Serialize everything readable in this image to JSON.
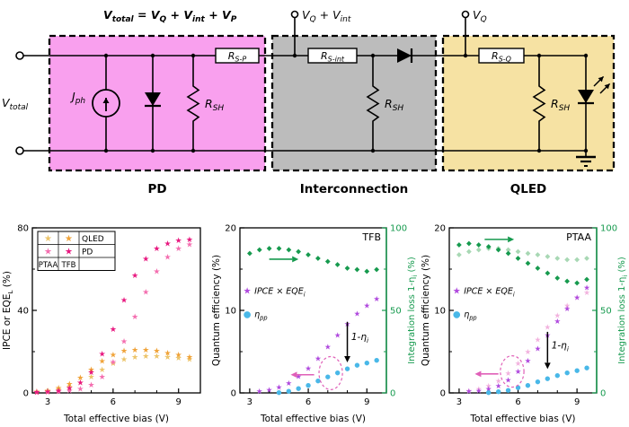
{
  "circuit": {
    "formula": [
      "V",
      "total",
      " = ",
      "V",
      "Q",
      " + ",
      "V",
      "int",
      " + ",
      "V",
      "P"
    ],
    "v_total": [
      "V",
      "total"
    ],
    "v_q_int": [
      "V",
      "Q",
      " + ",
      "V",
      "int"
    ],
    "v_q": [
      "V",
      "Q"
    ],
    "j_ph": [
      "J",
      "ph"
    ],
    "r_sh": [
      "R",
      "SH"
    ],
    "r_sp": [
      "R",
      "S-P"
    ],
    "r_sint": [
      "R",
      "S-int"
    ],
    "r_sq": [
      "R",
      "S-Q"
    ],
    "sections": {
      "pd": "PD",
      "interconnection": "Interconnection",
      "qled": "QLED"
    },
    "colors": {
      "pd_box": "#f9a0ee",
      "interconnection_box": "#bcbcbc",
      "qled_box": "#f6e2a3"
    }
  },
  "chart_data": [
    {
      "type": "scatter",
      "panel": "left",
      "title": "",
      "xlabel": "Total effective bias (V)",
      "ylabel_parts": [
        [
          "IPCE or EQE",
          false
        ],
        [
          "L",
          true
        ],
        [
          " (%)",
          false
        ]
      ],
      "xlim": [
        2.3,
        10
      ],
      "ylim": [
        0,
        80
      ],
      "xticks": [
        3,
        6,
        9
      ],
      "xminor": [
        4,
        5,
        7,
        8
      ],
      "yticks": [
        0,
        40,
        80
      ],
      "yminor": [
        20,
        60
      ],
      "ml": 36,
      "mr": 10,
      "legend_table": {
        "cols": [
          "PTAA",
          "TFB"
        ],
        "rows": [
          {
            "label": "QLED",
            "colors": [
              "#ecc46a",
              "#f0a339"
            ]
          },
          {
            "label": "PD",
            "colors": [
              "#f46fb0",
              "#e81980"
            ]
          }
        ]
      },
      "series": [
        {
          "name": "QLED PTAA",
          "color": "#ecc46a",
          "glyph": "★",
          "size": 9,
          "axis": "y",
          "x": [
            2.5,
            3,
            3.5,
            4,
            4.5,
            5,
            5.5,
            6,
            6.5,
            7,
            7.5,
            8,
            8.5,
            9,
            9.5
          ],
          "y": [
            0.5,
            1,
            1.8,
            3,
            5,
            8,
            11.5,
            14.5,
            16.5,
            17.5,
            18,
            18,
            17.5,
            17,
            16.5
          ]
        },
        {
          "name": "QLED TFB",
          "color": "#f0a339",
          "glyph": "★",
          "size": 9,
          "axis": "y",
          "x": [
            2.5,
            3,
            3.5,
            4,
            4.5,
            5,
            5.5,
            6,
            6.5,
            7,
            7.5,
            8,
            8.5,
            9,
            9.5
          ],
          "y": [
            0.7,
            1.3,
            2.5,
            4.5,
            7.5,
            11.5,
            15.5,
            18.5,
            20.5,
            21,
            21,
            20.5,
            19.5,
            18.5,
            17.5
          ]
        },
        {
          "name": "PD PTAA",
          "color": "#f46fb0",
          "glyph": "★",
          "size": 9,
          "axis": "y",
          "x": [
            2.5,
            3,
            3.5,
            4,
            4.5,
            5,
            5.5,
            6,
            6.5,
            7,
            7.5,
            8,
            8.5,
            9,
            9.5
          ],
          "y": [
            0.3,
            0.5,
            0.8,
            1.2,
            2,
            4,
            8,
            15,
            25,
            37,
            49,
            59,
            66,
            70,
            72
          ]
        },
        {
          "name": "PD TFB",
          "color": "#e81980",
          "glyph": "★",
          "size": 9,
          "axis": "y",
          "x": [
            2.5,
            3,
            3.5,
            4,
            4.5,
            5,
            5.5,
            6,
            6.5,
            7,
            7.5,
            8,
            8.5,
            9,
            9.5
          ],
          "y": [
            0.5,
            0.8,
            1.2,
            2.5,
            5,
            10,
            19,
            31,
            45,
            57,
            65,
            70,
            72.5,
            74,
            74.5
          ]
        }
      ]
    },
    {
      "type": "scatter",
      "panel": "middle",
      "title": "TFB",
      "xlabel": "Total effective bias (V)",
      "ylabel_parts": [
        [
          "Quantum efficiency (%)",
          false
        ]
      ],
      "xlim": [
        2.5,
        10
      ],
      "ylim": [
        0,
        20
      ],
      "xticks": [
        3,
        6,
        9
      ],
      "xminor": [
        4,
        5,
        7,
        8
      ],
      "yticks": [
        0,
        10,
        20
      ],
      "yminor": [
        5,
        15
      ],
      "ml": 34,
      "mr": 36,
      "y2": {
        "lim": [
          0,
          100
        ],
        "ticks": [
          0,
          50,
          100
        ],
        "minor": [
          25,
          75
        ],
        "color": "#169a4e",
        "label_parts": [
          [
            "Integration loss 1-η",
            false
          ],
          [
            "i",
            true
          ],
          [
            " (%)",
            false
          ]
        ]
      },
      "legend_items": [
        {
          "glyph": "★",
          "color": "#b04ade",
          "fx": 0.05,
          "fy": 0.4,
          "parts": [
            [
              "IPCE × EQE",
              false
            ],
            [
              "i",
              true
            ]
          ]
        },
        {
          "glyph": "●",
          "color": "#49b8e8",
          "fx": 0.05,
          "fy": 0.54,
          "parts": [
            [
              "η",
              false
            ],
            [
              "pp",
              true
            ]
          ]
        }
      ],
      "series": [
        {
          "name": "Integration loss",
          "color": "#169a4e",
          "glyph": "◆",
          "size": 7.5,
          "axis": "y2",
          "x": [
            3,
            3.5,
            4,
            4.5,
            5,
            5.5,
            6,
            6.5,
            7,
            7.5,
            8,
            8.5,
            9,
            9.5
          ],
          "y": [
            85,
            87,
            88,
            88,
            87,
            86,
            84,
            82,
            80,
            78,
            76,
            75,
            74,
            75
          ]
        },
        {
          "name": "IPCE × EQEi",
          "color": "#b04ade",
          "glyph": "★",
          "size": 8.5,
          "axis": "y",
          "x": [
            3.5,
            4,
            4.5,
            5,
            5.5,
            6,
            6.5,
            7,
            7.5,
            8,
            8.5,
            9,
            9.5
          ],
          "y": [
            0.2,
            0.4,
            0.7,
            1.2,
            2,
            3,
            4.2,
            5.6,
            7,
            8.4,
            9.6,
            10.6,
            11.4
          ]
        },
        {
          "name": "ηpp",
          "color": "#49b8e8",
          "glyph": "●",
          "size": 7,
          "axis": "y",
          "x": [
            4.5,
            5,
            5.5,
            6,
            6.5,
            7,
            7.5,
            8,
            8.5,
            9,
            9.5
          ],
          "y": [
            0.1,
            0.3,
            0.6,
            1,
            1.5,
            2,
            2.5,
            3,
            3.4,
            3.7,
            4
          ]
        }
      ],
      "annotations": [
        {
          "kind": "arrow",
          "axis": "y2",
          "x1": 4.0,
          "y1": 81,
          "x2": 5.5,
          "y2": 81,
          "color": "#169a4e",
          "w": 1.6
        },
        {
          "kind": "arrow",
          "axis": "y",
          "x1": 6.3,
          "y1": 2.2,
          "x2": 5.1,
          "y2": 2.2,
          "color": "#e060b8",
          "w": 1.6
        },
        {
          "kind": "ellipse",
          "axis": "y",
          "cx": 7.15,
          "cy": 2.4,
          "rx": 0.6,
          "ry": 2.0,
          "color": "#e060b8"
        },
        {
          "kind": "arrow",
          "axis": "y",
          "x1": 8.0,
          "y1": 8.6,
          "x2": 8.0,
          "y2": 3.7,
          "color": "#000000",
          "w": 1.5
        },
        {
          "kind": "label",
          "axis": "y",
          "x": 8.2,
          "y": 6.4,
          "parts": [
            [
              "1-η",
              false
            ],
            [
              "i",
              true
            ]
          ],
          "size": 10.5
        }
      ]
    },
    {
      "type": "scatter",
      "panel": "right",
      "title": "PTAA",
      "xlabel": "Total effective bias (V)",
      "ylabel_parts": [
        [
          "Quantum efficiency (%)",
          false
        ]
      ],
      "xlim": [
        2.5,
        10
      ],
      "ylim": [
        0,
        20
      ],
      "xticks": [
        3,
        6,
        9
      ],
      "xminor": [
        4,
        5,
        7,
        8
      ],
      "yticks": [
        0,
        10,
        20
      ],
      "yminor": [
        5,
        15
      ],
      "ml": 34,
      "mr": 36,
      "y2": {
        "lim": [
          0,
          100
        ],
        "ticks": [
          0,
          50,
          100
        ],
        "minor": [
          25,
          75
        ],
        "color": "#169a4e",
        "label_parts": [
          [
            "Integration loss 1-η",
            false
          ],
          [
            "i",
            true
          ],
          [
            " (%)",
            false
          ]
        ]
      },
      "legend_items": [
        {
          "glyph": "★",
          "color": "#b04ade",
          "fx": 0.05,
          "fy": 0.4,
          "parts": [
            [
              "IPCE × EQE",
              false
            ],
            [
              "i",
              true
            ]
          ]
        },
        {
          "glyph": "●",
          "color": "#49b8e8",
          "fx": 0.05,
          "fy": 0.54,
          "parts": [
            [
              "η",
              false
            ],
            [
              "pp",
              true
            ]
          ]
        }
      ],
      "series": [
        {
          "name": "Integration loss TFB ref",
          "color": "#a8d8b4",
          "glyph": "◆",
          "size": 7.5,
          "axis": "y2",
          "x": [
            3,
            3.5,
            4,
            4.5,
            5,
            5.5,
            6,
            6.5,
            7,
            7.5,
            8,
            8.5,
            9,
            9.5
          ],
          "y": [
            84,
            86,
            87,
            88,
            88,
            87,
            86,
            85,
            84,
            83,
            82,
            81,
            81,
            82
          ]
        },
        {
          "name": "Integration loss",
          "color": "#169a4e",
          "glyph": "◆",
          "size": 7.5,
          "axis": "y2",
          "x": [
            3,
            3.5,
            4,
            4.5,
            5,
            5.5,
            6,
            6.5,
            7,
            7.5,
            8,
            8.5,
            9,
            9.5
          ],
          "y": [
            90,
            91,
            90,
            89,
            87,
            85,
            82,
            79,
            76,
            73,
            70,
            68,
            67,
            69
          ]
        },
        {
          "name": "IPCE × EQE TFB ref",
          "color": "#f2b2de",
          "glyph": "★",
          "size": 8.5,
          "axis": "y",
          "x": [
            3.5,
            4,
            4.5,
            5,
            5.5,
            6,
            6.5,
            7,
            7.5,
            8,
            8.5,
            9,
            9.5
          ],
          "y": [
            0.3,
            0.5,
            0.9,
            1.5,
            2.4,
            3.6,
            5,
            6.5,
            8,
            9.4,
            10.6,
            11.6,
            12.2
          ]
        },
        {
          "name": "IPCE × EQEi",
          "color": "#b04ade",
          "glyph": "★",
          "size": 8.5,
          "axis": "y",
          "x": [
            3.5,
            4,
            4.5,
            5,
            5.5,
            6,
            6.5,
            7,
            7.5,
            8,
            8.5,
            9,
            9.5
          ],
          "y": [
            0.2,
            0.3,
            0.5,
            0.9,
            1.6,
            2.6,
            3.9,
            5.4,
            7,
            8.7,
            10.2,
            11.6,
            12.8
          ]
        },
        {
          "name": "ηpp",
          "color": "#49b8e8",
          "glyph": "●",
          "size": 7,
          "axis": "y",
          "x": [
            4.5,
            5,
            5.5,
            6,
            6.5,
            7,
            7.5,
            8,
            8.5,
            9,
            9.5
          ],
          "y": [
            0.1,
            0.2,
            0.4,
            0.7,
            1,
            1.4,
            1.8,
            2.2,
            2.5,
            2.8,
            3.1
          ]
        }
      ],
      "annotations": [
        {
          "kind": "arrow",
          "axis": "y2",
          "x1": 4.3,
          "y1": 93,
          "x2": 5.8,
          "y2": 93,
          "color": "#169a4e",
          "w": 1.6
        },
        {
          "kind": "arrow",
          "axis": "y",
          "x1": 5.0,
          "y1": 2.3,
          "x2": 3.8,
          "y2": 2.3,
          "color": "#e060b8",
          "w": 1.6
        },
        {
          "kind": "ellipse",
          "axis": "y",
          "cx": 5.7,
          "cy": 2.6,
          "rx": 0.6,
          "ry": 1.9,
          "color": "#e060b8"
        },
        {
          "kind": "arrow",
          "axis": "y",
          "x1": 7.5,
          "y1": 7.4,
          "x2": 7.5,
          "y2": 2.9,
          "color": "#000000",
          "w": 1.5
        },
        {
          "kind": "label",
          "axis": "y",
          "x": 7.7,
          "y": 5.4,
          "parts": [
            [
              "1-η",
              false
            ],
            [
              "i",
              true
            ]
          ],
          "size": 10.5
        }
      ]
    }
  ]
}
